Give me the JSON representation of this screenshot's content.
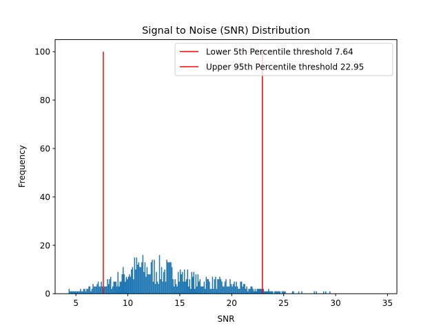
{
  "chart_data": {
    "type": "bar",
    "title": "Signal to Noise (SNR) Distribution",
    "xlabel": "SNR",
    "ylabel": "Frequency",
    "xlim": [
      3.0,
      35.9
    ],
    "ylim": [
      0,
      105
    ],
    "xticks": [
      5,
      10,
      15,
      20,
      25,
      30,
      35
    ],
    "yticks": [
      0,
      20,
      40,
      60,
      80,
      100
    ],
    "grid": false,
    "legend_position": "top-right",
    "bar_color": "#1f77b4",
    "line_color": "#ff0000",
    "histogram": {
      "bin_width": 0.1,
      "profile": {
        "snr": [
          4.2,
          5.0,
          6.0,
          7.0,
          8.0,
          9.0,
          10.0,
          11.0,
          12.0,
          13.0,
          14.0,
          15.0,
          16.0,
          17.0,
          18.0,
          19.0,
          20.0,
          21.0,
          22.0,
          23.0,
          24.0,
          25.0,
          26.0,
          28.0,
          30.0,
          32.0,
          34.5
        ],
        "frequency": [
          1,
          1,
          2,
          3,
          4,
          6,
          9,
          11,
          10,
          10,
          9,
          8,
          6,
          5,
          5,
          4,
          4,
          3,
          2,
          1.5,
          1,
          0.8,
          0.6,
          0.4,
          0.3,
          0.2,
          0.1
        ]
      }
    },
    "thresholds": [
      {
        "label": "Lower 5th Percentile threshold 7.64",
        "x": 7.64,
        "y_max": 100
      },
      {
        "label": "Upper 95th Percentile threshold 22.95",
        "x": 22.95,
        "y_max": 100
      }
    ]
  }
}
